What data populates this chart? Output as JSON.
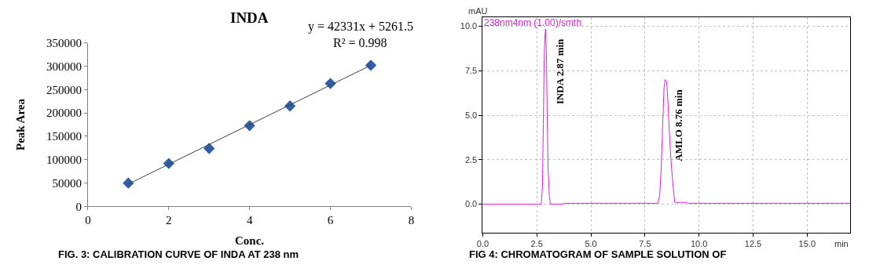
{
  "chart_data": [
    {
      "type": "scatter",
      "title": "INDA",
      "xlabel": "Conc.",
      "ylabel": "Peak Area",
      "xlim": [
        0,
        8
      ],
      "xticks": [
        0,
        2,
        4,
        6,
        8
      ],
      "ylim": [
        0,
        350000
      ],
      "yticks": [
        0,
        50000,
        100000,
        150000,
        200000,
        250000,
        300000,
        350000
      ],
      "grid": false,
      "series": [
        {
          "type": "scatter",
          "marker": "diamond",
          "color": "#2e5fa8",
          "x": [
            1,
            2,
            3,
            4,
            5,
            6,
            7
          ],
          "values": [
            50000,
            92000,
            124000,
            173000,
            215000,
            263000,
            302000
          ]
        },
        {
          "type": "line",
          "color": "#404040",
          "x": [
            1,
            7
          ],
          "values": [
            48000,
            302000
          ]
        }
      ],
      "annotations": [
        "y = 42331x + 5261.5",
        "R² = 0.998",
        "FIG. 3: CALIBRATION CURVE OF INDA AT 238 nm"
      ]
    },
    {
      "type": "line",
      "xlabel": "min",
      "ylabel": "mAU",
      "grid": true,
      "line_style": "solid",
      "xlim": [
        0,
        17
      ],
      "xticks": [
        {
          "value": 0,
          "label": "0.0"
        },
        {
          "value": 2.5,
          "label": "2.5"
        },
        {
          "value": 5,
          "label": "5.0"
        },
        {
          "value": 7.5,
          "label": "7.5"
        },
        {
          "value": 10,
          "label": "10.0"
        },
        {
          "value": 12.5,
          "label": "12.5"
        },
        {
          "value": 15,
          "label": "15.0"
        }
      ],
      "ylim": [
        -1.6,
        10.5
      ],
      "yticks": [
        {
          "value": 0,
          "label": "0.0"
        },
        {
          "value": 2.5,
          "label": "2.5"
        },
        {
          "value": 5,
          "label": "5.0"
        },
        {
          "value": 7.5,
          "label": "7.5"
        },
        {
          "value": 10,
          "label": "10.0"
        }
      ],
      "series": [
        {
          "name": "238nm4nm (1.00)/smth",
          "color": "#e020e0",
          "x": [
            0,
            2.7,
            2.76,
            2.8,
            2.84,
            2.88,
            2.91,
            2.95,
            2.98,
            3.02,
            3.08,
            3.12,
            3.7,
            3.75,
            8.1,
            8.18,
            8.25,
            8.32,
            8.38,
            8.43,
            8.5,
            8.56,
            8.62,
            8.7,
            8.8,
            8.88,
            9.4,
            9.5,
            17
          ],
          "values": [
            0,
            0,
            1.0,
            4.5,
            8.2,
            9.6,
            9.85,
            8.0,
            5.0,
            2.0,
            0.5,
            0,
            0,
            0.05,
            0.05,
            0.5,
            2.0,
            4.5,
            6.5,
            7.0,
            6.9,
            5.8,
            4.2,
            2.5,
            1.0,
            0.1,
            0.1,
            0.05,
            0.05
          ]
        }
      ],
      "annotations": [
        {
          "text": "INDA 2.87 min",
          "x": 2.91,
          "y": 9.85
        },
        {
          "text": "AMLO 8.76 min",
          "x": 8.43,
          "y": 7.0
        },
        "FIG 4: CHROMATOGRAM OF SAMPLE SOLUTION OF"
      ]
    }
  ]
}
